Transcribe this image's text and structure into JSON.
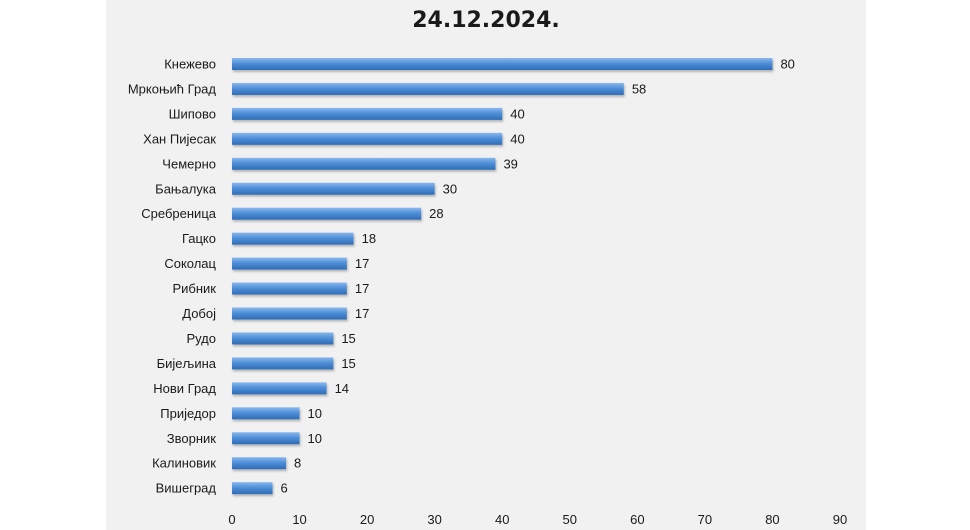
{
  "chart_data": {
    "type": "bar",
    "orientation": "horizontal",
    "title": "24.12.2024.",
    "categories": [
      "Кнежево",
      "Мркоњић Град",
      "Шипово",
      "Хан Пијесак",
      "Чемерно",
      "Бањалука",
      "Сребреница",
      "Гацко",
      "Соколац",
      "Рибник",
      "Добој",
      "Рудо",
      "Бијељина",
      "Нови Град",
      "Приједор",
      "Зворник",
      "Калиновик",
      "Вишеград"
    ],
    "values": [
      80,
      58,
      40,
      40,
      39,
      30,
      28,
      18,
      17,
      17,
      17,
      15,
      15,
      14,
      10,
      10,
      8,
      6
    ],
    "xlim": [
      0,
      90
    ],
    "xticks": [
      0,
      10,
      20,
      30,
      40,
      50,
      60,
      70,
      80,
      90
    ],
    "grid": false,
    "bar_color": "#4f8fd8"
  }
}
